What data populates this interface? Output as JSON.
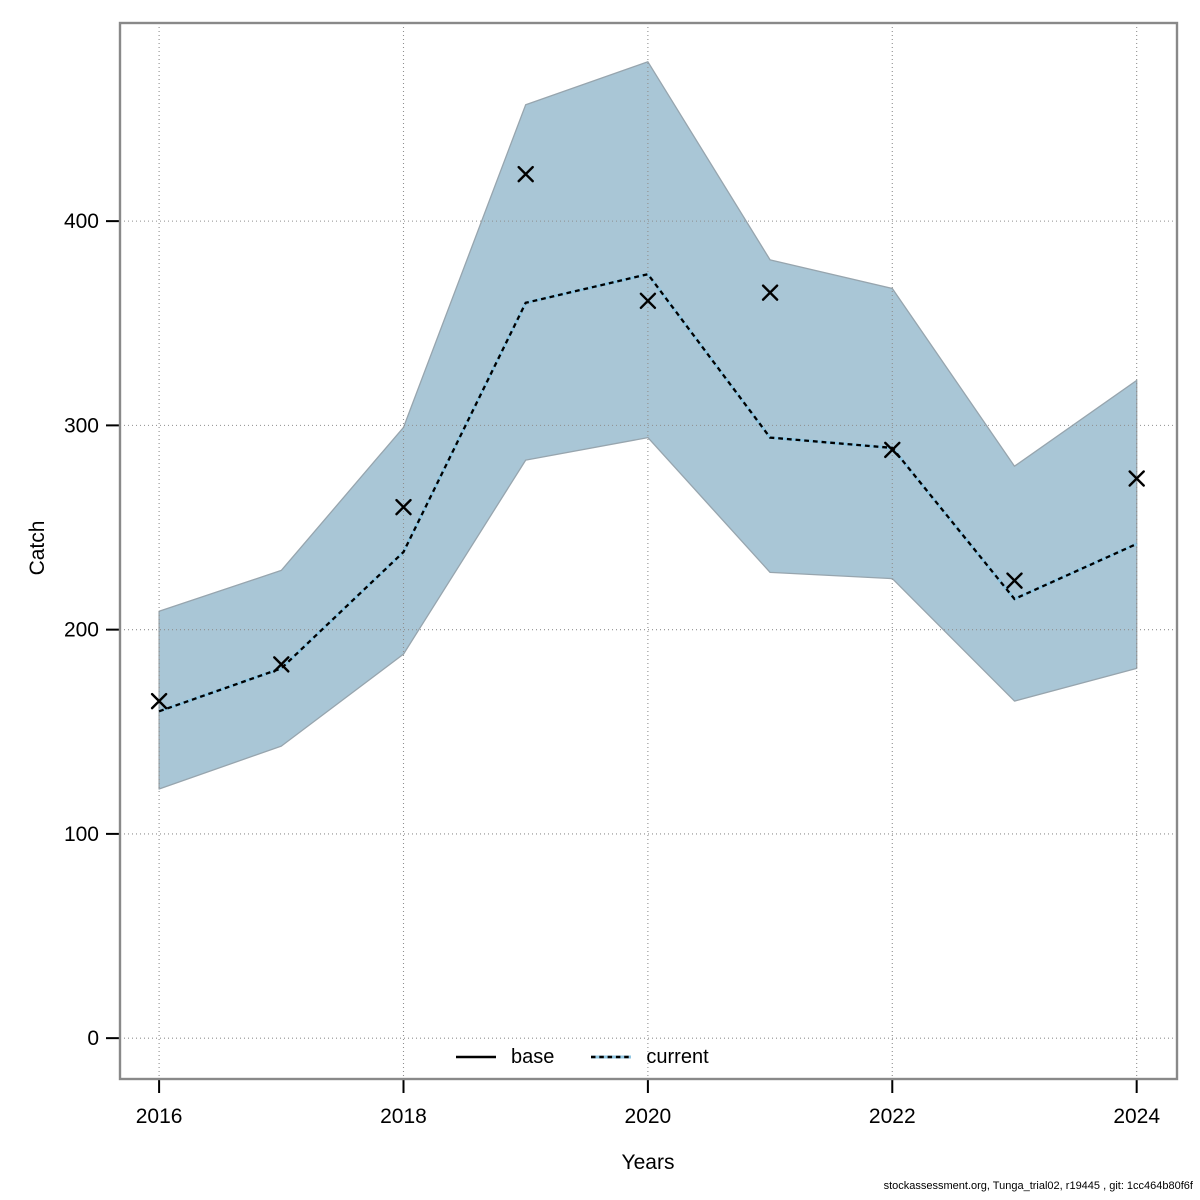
{
  "footer": {
    "text": "stockassessment.org, Tunga_trial02, r19445 , git: 1cc464b80f6f"
  },
  "chart_data": {
    "type": "line",
    "title": "",
    "xlabel": "Years",
    "ylabel": "Catch",
    "x": [
      2016,
      2017,
      2018,
      2019,
      2020,
      2021,
      2022,
      2023,
      2024
    ],
    "series": [
      {
        "name": "base",
        "line": "solid",
        "color": "#000000",
        "values": [
          160,
          181,
          238,
          360,
          374,
          294,
          289,
          215,
          242
        ]
      },
      {
        "name": "current",
        "line": "dotted",
        "color": "#000000",
        "underlay_color": "#8fc6e2",
        "values": [
          160,
          181,
          238,
          360,
          374,
          294,
          289,
          215,
          242
        ]
      }
    ],
    "observations": {
      "name": "observed-catch",
      "marker": "x",
      "color": "#000000",
      "values": [
        165,
        183,
        260,
        423,
        361,
        365,
        288,
        224,
        274
      ]
    },
    "band": {
      "name": "confidence-band",
      "fill": "#a9c6d6",
      "edge": "#97a5ae",
      "hi": [
        209,
        229,
        299,
        457,
        478,
        381,
        367,
        280,
        322
      ],
      "lo": [
        122,
        143,
        188,
        283,
        294,
        228,
        225,
        165,
        181
      ]
    },
    "x_ticks": [
      2016,
      2018,
      2020,
      2022,
      2024
    ],
    "y_ticks": [
      0,
      100,
      200,
      300,
      400
    ],
    "xlim": [
      2015.68,
      2024.33
    ],
    "ylim": [
      -20,
      497
    ],
    "grid": true,
    "grid_color": "#8f8f8f",
    "axis_box_color": "#898989",
    "tick_color": "#000000",
    "legend": {
      "position": "bottom-center",
      "items": [
        {
          "label": "base",
          "line": "solid",
          "color": "#000000"
        },
        {
          "label": "current",
          "line": "dotted",
          "color": "#000000",
          "underlay": "#8fc6e2"
        }
      ]
    }
  }
}
